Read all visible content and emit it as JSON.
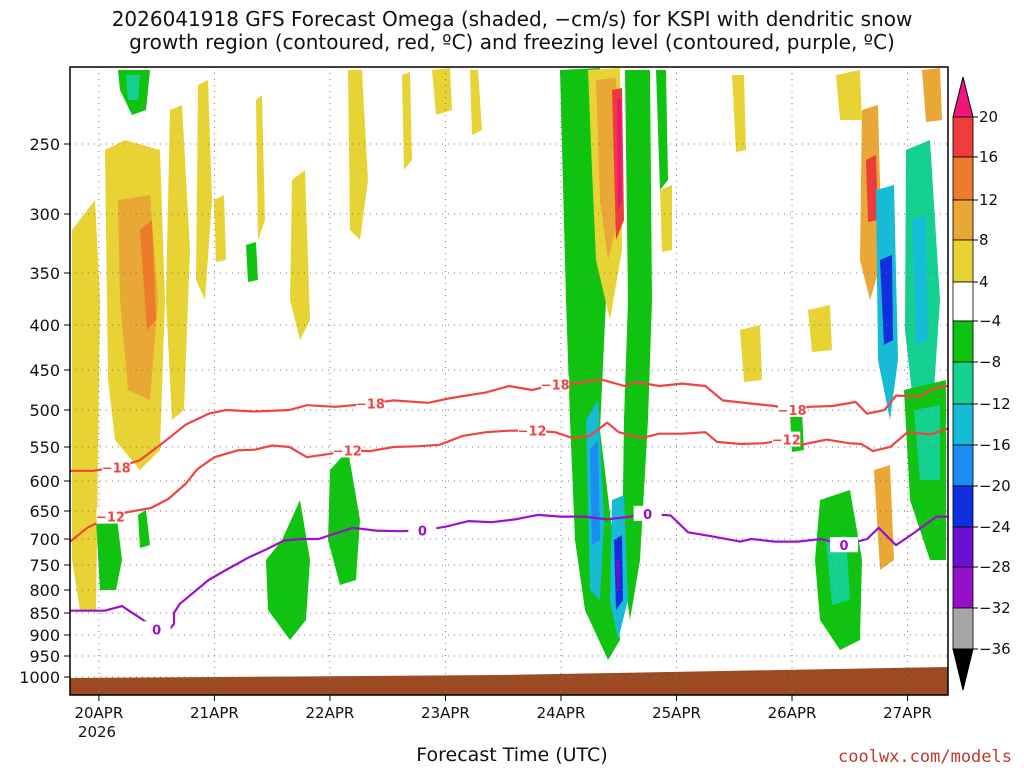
{
  "title_line1": "2026041918 GFS Forecast Omega (shaded, −cm/s) for KSPI with dendritic snow",
  "title_line2": "growth region (contoured, red, ºC) and freezing level (contoured, purple, ºC)",
  "xlabel": "Forecast Time (UTC)",
  "credit": "coolwx.com/models",
  "colors": {
    "ground": "#9b4a22",
    "red_contour": "#f04444",
    "purple_contour": "#9b11c9",
    "grid": "#777777"
  },
  "chart_data": {
    "type": "heatmap",
    "title": "2026041918 GFS Forecast Omega (shaded, −cm/s) for KSPI with dendritic snow growth region (contoured, red, ºC) and freezing level (contoured, purple, ºC)",
    "xlabel": "Forecast Time (UTC)",
    "ylabel": "",
    "x_range_days": [
      0,
      7.6
    ],
    "y_levels": [
      250,
      300,
      350,
      400,
      450,
      500,
      550,
      600,
      650,
      700,
      750,
      800,
      850,
      900,
      950,
      1000
    ],
    "y_tick_labels": [
      "250",
      "300",
      "350",
      "400",
      "450",
      "500",
      "550",
      "600",
      "650",
      "700",
      "750",
      "800",
      "850",
      "900",
      "950",
      "1000"
    ],
    "x_ticks": [
      {
        "t": 0.25,
        "label": "20APR"
      },
      {
        "t": 1.25,
        "label": "21APR"
      },
      {
        "t": 2.25,
        "label": "22APR"
      },
      {
        "t": 3.25,
        "label": "23APR"
      },
      {
        "t": 4.25,
        "label": "24APR"
      },
      {
        "t": 5.25,
        "label": "25APR"
      },
      {
        "t": 6.25,
        "label": "26APR"
      },
      {
        "t": 7.25,
        "label": "27APR"
      }
    ],
    "x_year_label": "2026",
    "colorbar": {
      "levels": [
        20,
        16,
        12,
        8,
        4,
        -4,
        -8,
        -12,
        -16,
        -20,
        -24,
        -28,
        -32,
        -36
      ],
      "labels": [
        "20",
        "16",
        "12",
        "8",
        "4",
        "−4",
        "−8",
        "−12",
        "−16",
        "−20",
        "−24",
        "−28",
        "−32",
        "−36"
      ],
      "colors": [
        "#f0147d",
        "#ee3b3b",
        "#ee7b2b",
        "#e9a736",
        "#e8d335",
        "#ffffff",
        "#11c311",
        "#15d18f",
        "#16bbd6",
        "#1b8cf2",
        "#1030e0",
        "#6b0fd3",
        "#9312c9",
        "#a6a6a6",
        "#000000"
      ]
    },
    "series": [
      {
        "name": "-18 ºC",
        "color": "#f04444",
        "label": "−18",
        "points": [
          [
            0.0,
            585
          ],
          [
            0.2,
            585
          ],
          [
            0.4,
            580
          ],
          [
            0.6,
            570
          ],
          [
            0.8,
            545
          ],
          [
            1.0,
            520
          ],
          [
            1.2,
            505
          ],
          [
            1.35,
            500
          ],
          [
            1.6,
            502
          ],
          [
            1.9,
            500
          ],
          [
            2.05,
            494
          ],
          [
            2.3,
            496
          ],
          [
            2.6,
            492
          ],
          [
            2.8,
            488
          ],
          [
            3.1,
            491
          ],
          [
            3.3,
            485
          ],
          [
            3.6,
            478
          ],
          [
            3.8,
            470
          ],
          [
            4.0,
            475
          ],
          [
            4.2,
            468
          ],
          [
            4.3,
            468
          ],
          [
            4.6,
            462
          ],
          [
            4.8,
            470
          ],
          [
            4.9,
            465
          ],
          [
            5.1,
            470
          ],
          [
            5.3,
            467
          ],
          [
            5.5,
            470
          ],
          [
            5.65,
            488
          ],
          [
            5.9,
            492
          ],
          [
            6.1,
            495
          ],
          [
            6.25,
            500
          ],
          [
            6.4,
            496
          ],
          [
            6.6,
            495
          ],
          [
            6.8,
            490
          ],
          [
            6.9,
            505
          ],
          [
            7.05,
            500
          ],
          [
            7.15,
            482
          ],
          [
            7.35,
            483
          ],
          [
            7.5,
            472
          ],
          [
            7.6,
            470
          ]
        ]
      },
      {
        "name": "-12 ºC",
        "color": "#f04444",
        "label": "−12",
        "points": [
          [
            0.0,
            705
          ],
          [
            0.15,
            680
          ],
          [
            0.35,
            660
          ],
          [
            0.5,
            652
          ],
          [
            0.7,
            645
          ],
          [
            0.85,
            630
          ],
          [
            1.0,
            605
          ],
          [
            1.1,
            583
          ],
          [
            1.25,
            565
          ],
          [
            1.45,
            555
          ],
          [
            1.6,
            554
          ],
          [
            1.75,
            548
          ],
          [
            1.9,
            550
          ],
          [
            2.05,
            565
          ],
          [
            2.25,
            560
          ],
          [
            2.4,
            555
          ],
          [
            2.6,
            556
          ],
          [
            2.8,
            550
          ],
          [
            3.0,
            549
          ],
          [
            3.2,
            547
          ],
          [
            3.4,
            535
          ],
          [
            3.6,
            530
          ],
          [
            3.8,
            528
          ],
          [
            4.0,
            528
          ],
          [
            4.2,
            530
          ],
          [
            4.35,
            538
          ],
          [
            4.5,
            535
          ],
          [
            4.65,
            517
          ],
          [
            4.75,
            530
          ],
          [
            4.95,
            538
          ],
          [
            5.1,
            532
          ],
          [
            5.3,
            532
          ],
          [
            5.5,
            530
          ],
          [
            5.6,
            543
          ],
          [
            5.8,
            546
          ],
          [
            6.0,
            545
          ],
          [
            6.2,
            540
          ],
          [
            6.3,
            548
          ],
          [
            6.55,
            540
          ],
          [
            6.75,
            545
          ],
          [
            6.85,
            546
          ],
          [
            6.95,
            556
          ],
          [
            7.1,
            550
          ],
          [
            7.25,
            530
          ],
          [
            7.45,
            533
          ],
          [
            7.6,
            525
          ]
        ]
      },
      {
        "name": "0 ºC freezing level",
        "color": "#9b11c9",
        "label": "0",
        "points": [
          [
            0.0,
            845
          ],
          [
            0.3,
            845
          ],
          [
            0.45,
            835
          ],
          [
            0.6,
            860
          ],
          [
            0.75,
            887
          ],
          [
            0.85,
            890
          ],
          [
            0.9,
            875
          ],
          [
            0.9,
            850
          ],
          [
            0.95,
            830
          ],
          [
            1.0,
            820
          ],
          [
            1.2,
            780
          ],
          [
            1.35,
            760
          ],
          [
            1.55,
            735
          ],
          [
            1.7,
            720
          ],
          [
            1.85,
            703
          ],
          [
            2.0,
            700
          ],
          [
            2.15,
            700
          ],
          [
            2.3,
            690
          ],
          [
            2.45,
            680
          ],
          [
            2.65,
            685
          ],
          [
            2.85,
            686
          ],
          [
            3.05,
            685
          ],
          [
            3.25,
            678
          ],
          [
            3.45,
            668
          ],
          [
            3.65,
            670
          ],
          [
            3.85,
            665
          ],
          [
            4.05,
            657
          ],
          [
            4.25,
            660
          ],
          [
            4.45,
            660
          ],
          [
            4.65,
            665
          ],
          [
            4.85,
            660
          ],
          [
            5.0,
            655
          ],
          [
            5.2,
            658
          ],
          [
            5.35,
            688
          ],
          [
            5.55,
            695
          ],
          [
            5.8,
            705
          ],
          [
            5.9,
            700
          ],
          [
            6.1,
            705
          ],
          [
            6.3,
            705
          ],
          [
            6.5,
            700
          ],
          [
            6.7,
            712
          ],
          [
            6.9,
            700
          ],
          [
            7.0,
            680
          ],
          [
            7.15,
            712
          ],
          [
            7.3,
            690
          ],
          [
            7.5,
            660
          ],
          [
            7.6,
            660
          ]
        ]
      }
    ]
  }
}
